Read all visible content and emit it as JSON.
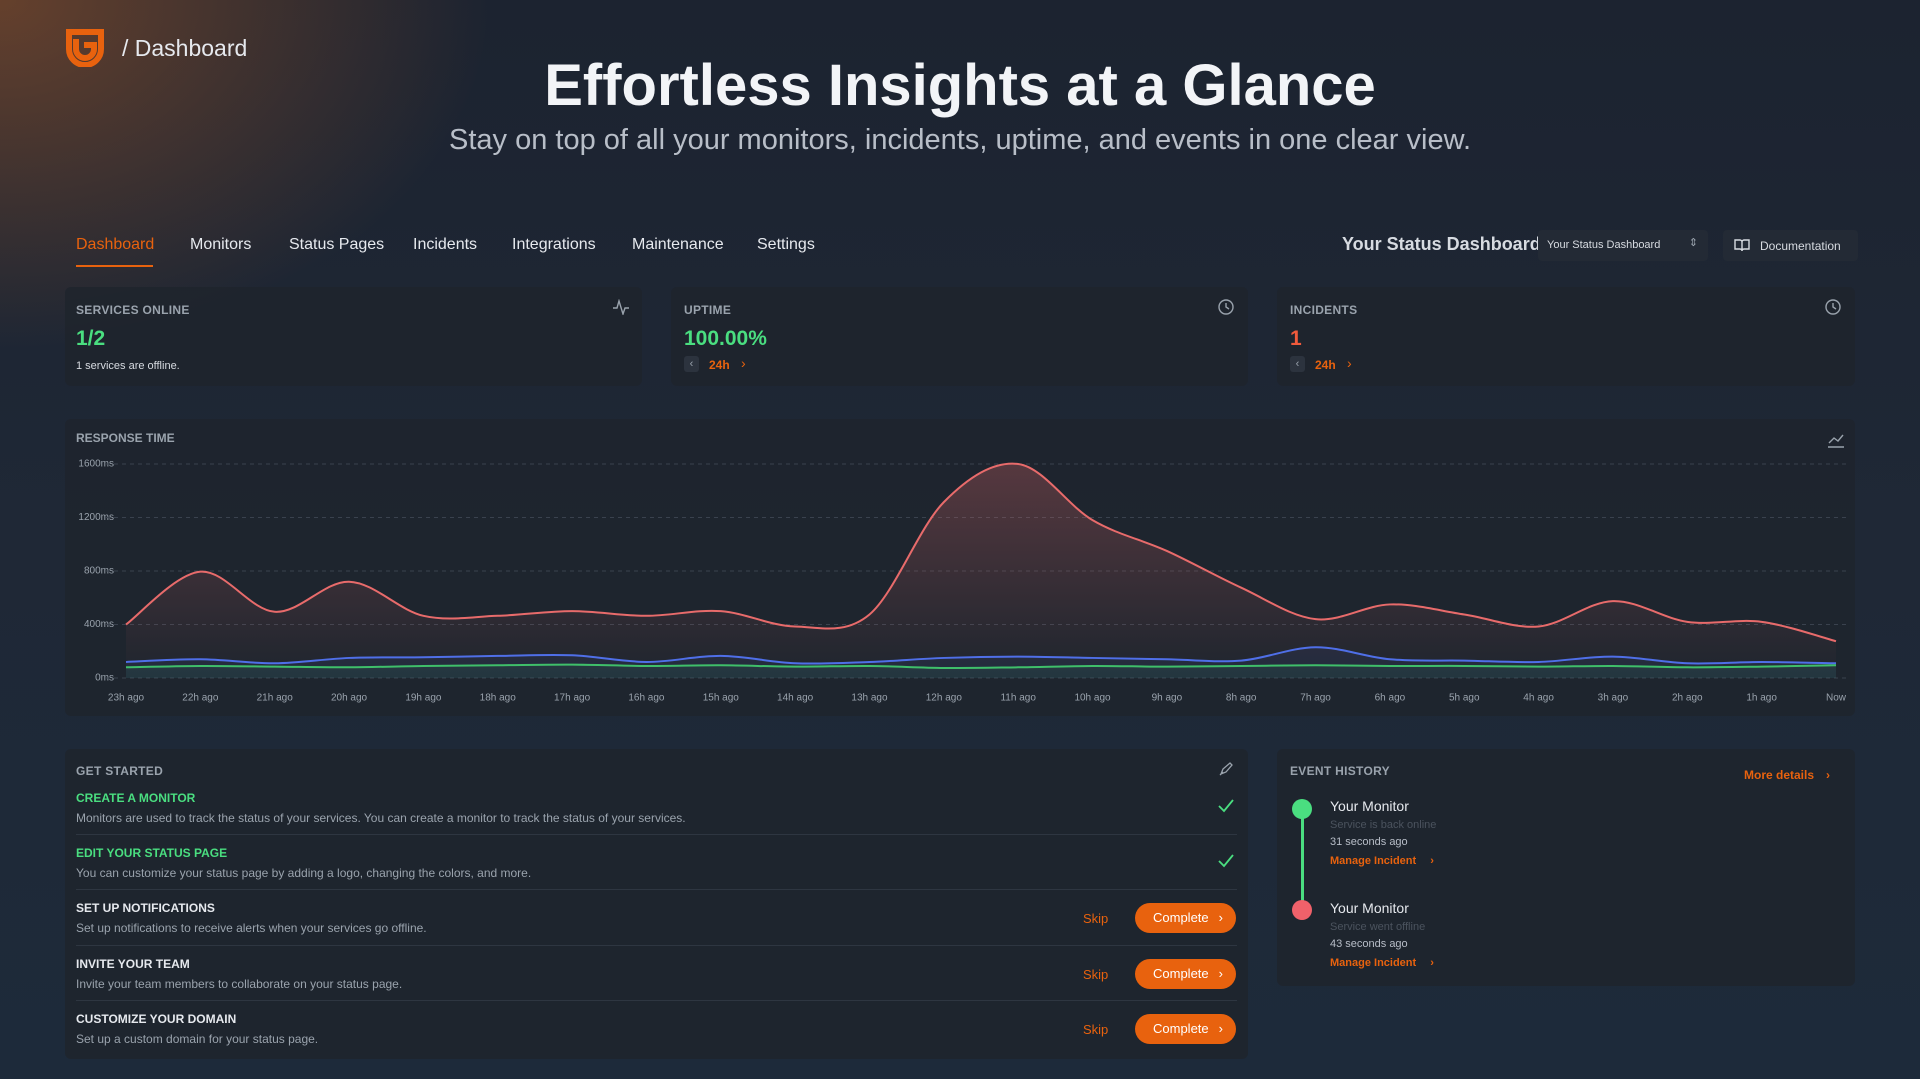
{
  "header": {
    "breadcrumb": "/ Dashboard",
    "title": "Effortless Insights at a Glance",
    "subtitle": "Stay on top of all your monitors, incidents, uptime, and events in one clear view."
  },
  "nav": {
    "items": [
      "Dashboard",
      "Monitors",
      "Status Pages",
      "Incidents",
      "Integrations",
      "Maintenance",
      "Settings"
    ],
    "dashboard_label": "Your Status Dashboard",
    "select": "Your Status Dashboard",
    "documentation": "Documentation"
  },
  "cards": [
    {
      "title": "SERVICES ONLINE",
      "value": "1/2",
      "note": "1 services are offline.",
      "color": "#4ade80"
    },
    {
      "title": "UPTIME",
      "value": "100.00%",
      "period": "24h",
      "color": "#4ade80"
    },
    {
      "title": "INCIDENTS",
      "value": "1",
      "period": "24h",
      "color": "#f05a3c"
    }
  ],
  "chart_data": {
    "type": "line",
    "title": "RESPONSE TIME",
    "categories": [
      "23h ago",
      "22h ago",
      "21h ago",
      "20h ago",
      "19h ago",
      "18h ago",
      "17h ago",
      "16h ago",
      "15h ago",
      "14h ago",
      "13h ago",
      "12h ago",
      "11h ago",
      "10h ago",
      "9h ago",
      "8h ago",
      "7h ago",
      "6h ago",
      "5h ago",
      "4h ago",
      "3h ago",
      "2h ago",
      "1h ago",
      "Now"
    ],
    "series": [
      {
        "color": "#e86b6b",
        "values": [
          400,
          795,
          495,
          720,
          465,
          465,
          500,
          465,
          500,
          385,
          475,
          1315,
          1600,
          1180,
          950,
          675,
          440,
          550,
          475,
          385,
          575,
          420,
          420,
          275
        ]
      },
      {
        "color": "#4f6fe8",
        "values": [
          120,
          140,
          110,
          150,
          155,
          165,
          170,
          120,
          165,
          110,
          120,
          150,
          160,
          150,
          140,
          130,
          230,
          140,
          130,
          120,
          160,
          110,
          120,
          110
        ]
      },
      {
        "color": "#3fbf6a",
        "values": [
          80,
          90,
          85,
          80,
          90,
          95,
          100,
          90,
          95,
          85,
          90,
          75,
          80,
          90,
          85,
          90,
          95,
          90,
          90,
          85,
          90,
          80,
          85,
          95
        ]
      }
    ],
    "ylim": [
      0,
      1600
    ],
    "yticks": [
      {
        "value": 0,
        "label": "0ms"
      },
      {
        "value": 400,
        "label": "400ms"
      },
      {
        "value": 800,
        "label": "800ms"
      },
      {
        "value": 1200,
        "label": "1200ms"
      },
      {
        "value": 1600,
        "label": "1600ms"
      }
    ],
    "grid": true
  },
  "get_started": {
    "title": "GET STARTED",
    "skip": "Skip",
    "complete": "Complete",
    "tasks": [
      {
        "title": "CREATE A MONITOR",
        "description": "Monitors are used to track the status of your services. You can create a monitor to track the status of your services.",
        "done": true
      },
      {
        "title": "EDIT YOUR STATUS PAGE",
        "description": "You can customize your status page by adding a logo, changing the colors, and more.",
        "done": true
      },
      {
        "title": "SET UP NOTIFICATIONS",
        "description": "Set up notifications to receive alerts when your services go offline.",
        "done": false
      },
      {
        "title": "INVITE YOUR TEAM",
        "description": "Invite your team members to collaborate on your status page.",
        "done": false
      },
      {
        "title": "CUSTOMIZE YOUR DOMAIN",
        "description": "Set up a custom domain for your status page.",
        "done": false
      }
    ]
  },
  "event_history": {
    "title": "EVENT HISTORY",
    "more": "More details",
    "events": [
      {
        "monitor": "Your Monitor",
        "status": "Service is back online",
        "time": "31 seconds ago",
        "action": "Manage Incident",
        "color": "#4ade80"
      },
      {
        "monitor": "Your Monitor",
        "status": "Service went offline",
        "time": "43 seconds ago",
        "action": "Manage Incident",
        "color": "#f0616a"
      }
    ]
  }
}
